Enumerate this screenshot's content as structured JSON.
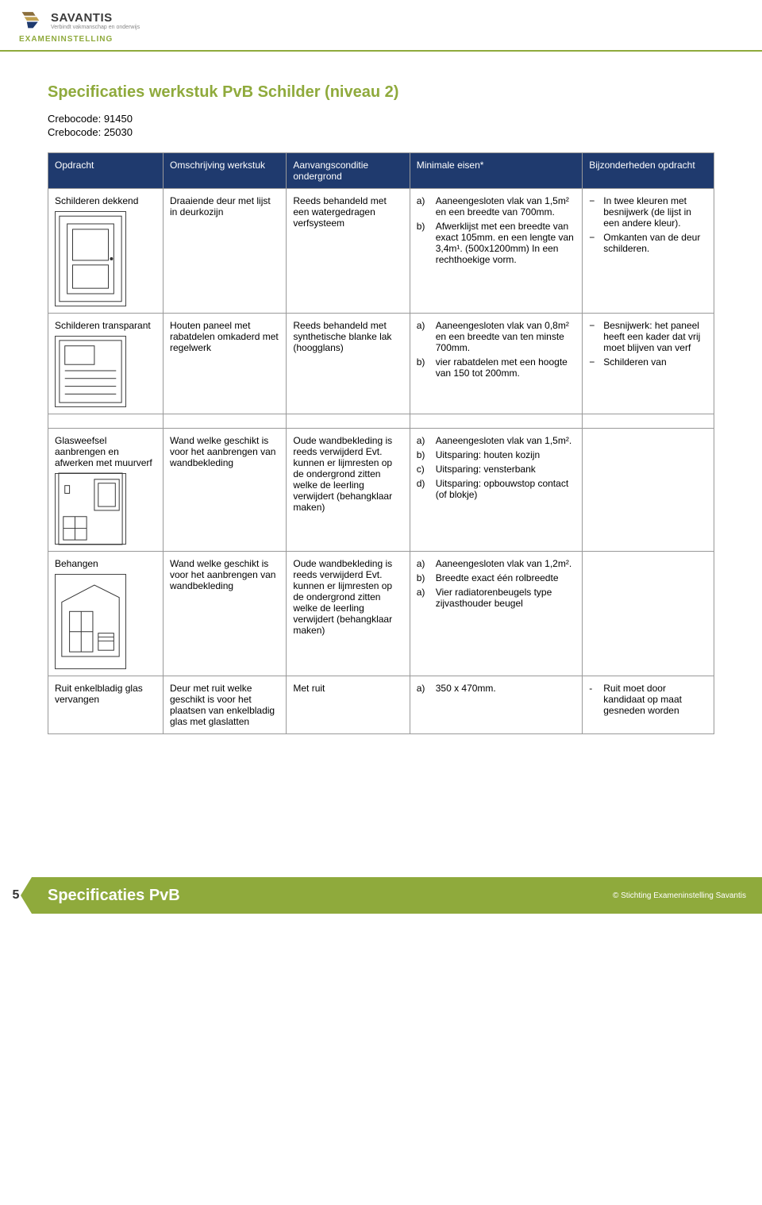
{
  "brand": {
    "name": "SAVANTIS",
    "tagline": "Verbindt vakmanschap en onderwijs",
    "sub": "EXAMENINSTELLING"
  },
  "title": "Specificaties werkstuk PvB Schilder (niveau 2)",
  "crebo1": "Crebocode: 91450",
  "crebo2": "Crebocode: 25030",
  "headers": {
    "c1": "Opdracht",
    "c2": "Omschrijving werkstuk",
    "c3": "Aanvangsconditie ondergrond",
    "c4": "Minimale eisen*",
    "c5": "Bijzonderheden opdracht"
  },
  "rows": [
    {
      "opdracht": "Schilderen dekkend",
      "omsch": "Draaiende deur met lijst in deurkozijn",
      "aanvang": "Reeds behandeld met een watergedragen verfsysteem",
      "eisen": [
        {
          "l": "a)",
          "t": "Aaneengesloten vlak van 1,5m² en een breedte van 700mm."
        },
        {
          "l": "b)",
          "t": "Afwerklijst met een breedte van exact 105mm. en een lengte van 3,4m¹. (500x1200mm) In een rechthoekige vorm."
        }
      ],
      "bijz": [
        {
          "d": "−",
          "t": "In twee kleuren met besnijwerk (de lijst in een andere kleur)."
        },
        {
          "d": "−",
          "t": "Omkanten van de deur schilderen."
        }
      ]
    },
    {
      "opdracht": "Schilderen transparant",
      "omsch": "Houten paneel met rabatdelen omkaderd met regelwerk",
      "aanvang": "Reeds behandeld met synthetische blanke lak (hoogglans)",
      "eisen": [
        {
          "l": "a)",
          "t": "Aaneengesloten vlak van 0,8m² en een breedte van ten minste 700mm."
        },
        {
          "l": "b)",
          "t": "vier rabatdelen met een hoogte van 150 tot 200mm."
        }
      ],
      "bijz": [
        {
          "d": "−",
          "t": "Besnijwerk: het paneel heeft een kader dat vrij moet blijven van verf"
        },
        {
          "d": "−",
          "t": "Schilderen van"
        }
      ]
    },
    {
      "opdracht": "Glasweefsel aanbrengen en afwerken met muurverf",
      "omsch": "Wand welke geschikt is voor het aanbrengen van wandbekleding",
      "aanvang": "Oude wandbekleding is reeds verwijderd Evt. kunnen er lijmresten op de ondergrond zitten welke de leerling verwijdert (behangklaar maken)",
      "eisen": [
        {
          "l": "a)",
          "t": "Aaneengesloten vlak van 1,5m²."
        },
        {
          "l": "b)",
          "t": "Uitsparing: houten kozijn"
        },
        {
          "l": "c)",
          "t": "Uitsparing: vensterbank"
        },
        {
          "l": "d)",
          "t": "Uitsparing: opbouwstop contact (of blokje)"
        }
      ],
      "bijz": []
    },
    {
      "opdracht": "Behangen",
      "omsch": "Wand welke geschikt is voor het aanbrengen van wandbekleding",
      "aanvang": "Oude wandbekleding is reeds verwijderd Evt. kunnen er lijmresten op de ondergrond zitten welke de leerling verwijdert (behangklaar maken)",
      "eisen": [
        {
          "l": "a)",
          "t": "Aaneengesloten vlak van 1,2m²."
        },
        {
          "l": "b)",
          "t": "Breedte exact één rolbreedte"
        },
        {
          "l": "a)",
          "t": "Vier radiatorenbeugels type zijvasthouder beugel"
        }
      ],
      "bijz": []
    },
    {
      "opdracht": "Ruit enkelbladig glas vervangen",
      "omsch": "Deur met ruit welke geschikt is voor het plaatsen van enkelbladig glas met glaslatten",
      "aanvang": "Met ruit",
      "eisen": [
        {
          "l": "a)",
          "t": "350 x 470mm."
        }
      ],
      "bijz": [
        {
          "d": "-",
          "t": "Ruit moet door kandidaat op maat gesneden worden"
        }
      ]
    }
  ],
  "footer": {
    "pagenum": "5",
    "title": "Specificaties PvB",
    "copy": "© Stichting Exameninstelling Savantis"
  },
  "colors": {
    "accent": "#8faa3c",
    "header_bg": "#1f3a6e"
  }
}
